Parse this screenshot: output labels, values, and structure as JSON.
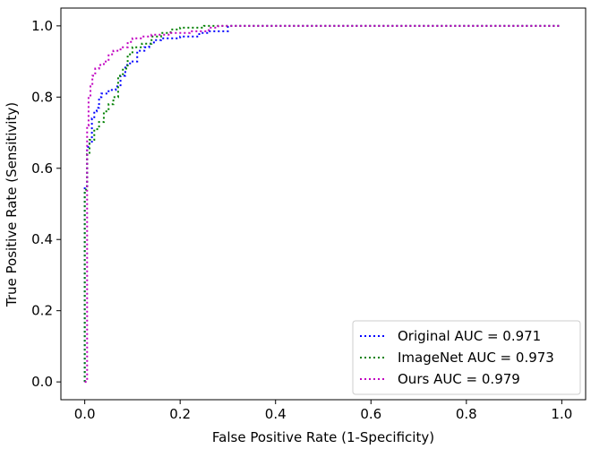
{
  "chart_data": {
    "type": "line",
    "title": "",
    "xlabel": "False Positive Rate (1-Specificity)",
    "ylabel": "True Positive Rate (Sensitivity)",
    "xlim": [
      -0.05,
      1.05
    ],
    "ylim": [
      -0.05,
      1.05
    ],
    "xticks": [
      0.0,
      0.2,
      0.4,
      0.6,
      0.8,
      1.0
    ],
    "yticks": [
      0.0,
      0.2,
      0.4,
      0.6,
      0.8,
      1.0
    ],
    "tick_labels_x": [
      "0.0",
      "0.2",
      "0.4",
      "0.6",
      "0.8",
      "1.0"
    ],
    "tick_labels_y": [
      "0.0",
      "0.2",
      "0.4",
      "0.6",
      "0.8",
      "1.0"
    ],
    "grid": false,
    "legend_position": "lower-right",
    "series": [
      {
        "name": "Original AUC = 0.971",
        "color": "#0000ff",
        "line_style": "dotted",
        "x": [
          0.0,
          0.0,
          0.005,
          0.005,
          0.01,
          0.01,
          0.015,
          0.015,
          0.02,
          0.02,
          0.025,
          0.025,
          0.03,
          0.03,
          0.035,
          0.035,
          0.05,
          0.05,
          0.065,
          0.065,
          0.075,
          0.075,
          0.085,
          0.085,
          0.095,
          0.095,
          0.11,
          0.11,
          0.125,
          0.125,
          0.135,
          0.135,
          0.145,
          0.145,
          0.16,
          0.16,
          0.2,
          0.2,
          0.24,
          0.24,
          0.26,
          0.26,
          0.3,
          0.3,
          1.0
        ],
        "y": [
          0.0,
          0.55,
          0.55,
          0.66,
          0.66,
          0.67,
          0.67,
          0.74,
          0.74,
          0.76,
          0.76,
          0.77,
          0.77,
          0.8,
          0.8,
          0.81,
          0.81,
          0.82,
          0.82,
          0.83,
          0.83,
          0.86,
          0.86,
          0.89,
          0.89,
          0.9,
          0.9,
          0.93,
          0.93,
          0.94,
          0.94,
          0.95,
          0.95,
          0.96,
          0.96,
          0.965,
          0.965,
          0.97,
          0.97,
          0.98,
          0.98,
          0.985,
          0.985,
          1.0,
          1.0
        ]
      },
      {
        "name": "ImageNet AUC = 0.973",
        "color": "#008000",
        "line_style": "dotted",
        "x": [
          0.0,
          0.0,
          0.005,
          0.005,
          0.01,
          0.01,
          0.02,
          0.02,
          0.03,
          0.03,
          0.04,
          0.04,
          0.05,
          0.05,
          0.06,
          0.06,
          0.07,
          0.07,
          0.08,
          0.08,
          0.09,
          0.09,
          0.1,
          0.1,
          0.12,
          0.12,
          0.14,
          0.14,
          0.16,
          0.16,
          0.18,
          0.18,
          0.2,
          0.2,
          0.25,
          0.25,
          1.0
        ],
        "y": [
          0.0,
          0.54,
          0.54,
          0.64,
          0.64,
          0.68,
          0.68,
          0.71,
          0.71,
          0.73,
          0.73,
          0.76,
          0.76,
          0.78,
          0.78,
          0.8,
          0.8,
          0.86,
          0.86,
          0.88,
          0.88,
          0.92,
          0.92,
          0.94,
          0.94,
          0.95,
          0.95,
          0.97,
          0.97,
          0.98,
          0.98,
          0.99,
          0.99,
          0.995,
          0.995,
          1.0,
          1.0
        ]
      },
      {
        "name": "Ours AUC = 0.979",
        "color": "#c000c0",
        "line_style": "dotted",
        "x": [
          0.0,
          0.005,
          0.005,
          0.008,
          0.008,
          0.012,
          0.012,
          0.016,
          0.016,
          0.022,
          0.022,
          0.03,
          0.03,
          0.04,
          0.04,
          0.05,
          0.05,
          0.06,
          0.06,
          0.075,
          0.075,
          0.09,
          0.09,
          0.1,
          0.1,
          0.12,
          0.12,
          0.14,
          0.14,
          0.18,
          0.18,
          0.22,
          0.22,
          0.26,
          0.26,
          0.28,
          0.28,
          1.0
        ],
        "y": [
          0.0,
          0.0,
          0.72,
          0.72,
          0.8,
          0.8,
          0.83,
          0.83,
          0.86,
          0.86,
          0.88,
          0.88,
          0.89,
          0.89,
          0.9,
          0.9,
          0.92,
          0.92,
          0.93,
          0.93,
          0.94,
          0.94,
          0.955,
          0.955,
          0.965,
          0.965,
          0.97,
          0.97,
          0.975,
          0.975,
          0.98,
          0.98,
          0.985,
          0.985,
          0.995,
          0.995,
          1.0,
          1.0
        ]
      }
    ]
  }
}
